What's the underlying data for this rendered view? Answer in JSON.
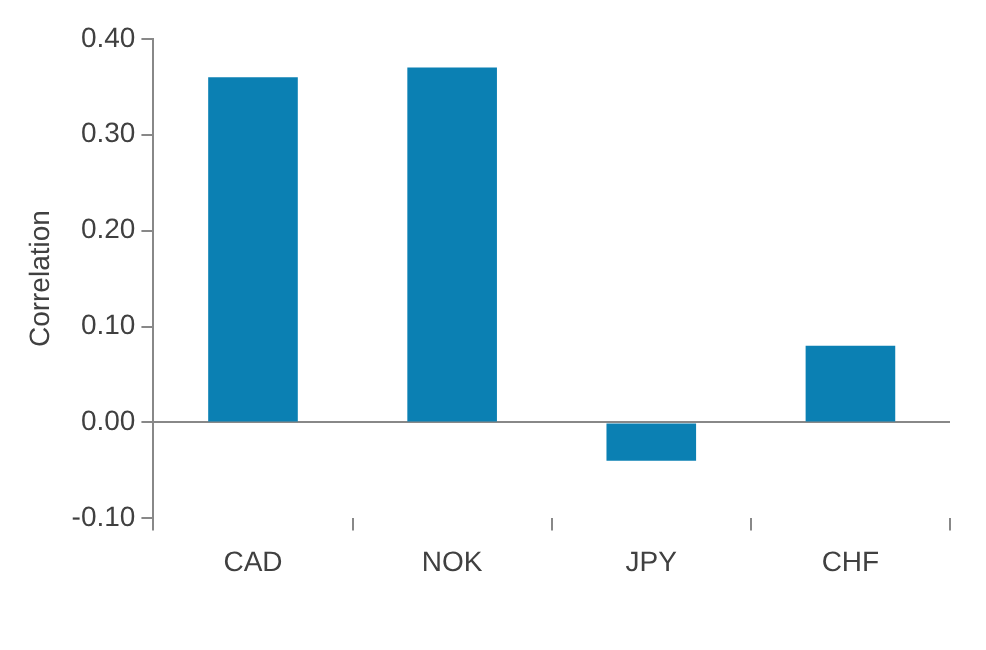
{
  "chart_data": {
    "type": "bar",
    "ylabel": "Correlation",
    "categories": [
      "CAD",
      "NOK",
      "JPY",
      "CHF"
    ],
    "values": [
      0.36,
      0.37,
      -0.04,
      0.08
    ],
    "color": "#0b80b3",
    "ylim": [
      -0.1,
      0.4
    ],
    "yticks": [
      {
        "value": -0.1,
        "label": "-0.10"
      },
      {
        "value": 0,
        "label": "0.00"
      },
      {
        "value": 0.1,
        "label": "0.10"
      },
      {
        "value": 0.2,
        "label": "0.20"
      },
      {
        "value": 0.3,
        "label": "0.30"
      },
      {
        "value": 0.4,
        "label": "0.40"
      }
    ],
    "legend": false
  }
}
